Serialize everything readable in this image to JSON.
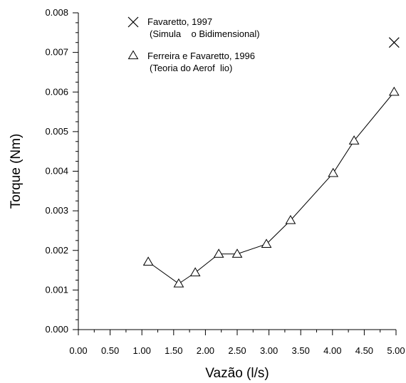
{
  "chart_data": {
    "type": "scatter",
    "xlabel": "Vazão (l/s)",
    "ylabel": "Torque (Nm)",
    "xlim": [
      0.0,
      5.0
    ],
    "ylim": [
      0.0,
      0.008
    ],
    "xticks": [
      "0.00",
      "0.50",
      "1.00",
      "1.50",
      "2.00",
      "2.50",
      "3.00",
      "3.50",
      "4.00",
      "4.50",
      "5.00"
    ],
    "yticks": [
      "0.000",
      "0.001",
      "0.002",
      "0.003",
      "0.004",
      "0.005",
      "0.006",
      "0.007",
      "0.008"
    ],
    "grid": false,
    "legend_position": "top-left",
    "series": [
      {
        "name": "Favaretto, 1997",
        "name_line2": "(Simula    o Bidimensional)",
        "marker": "x",
        "connected": false,
        "x": [
          4.97
        ],
        "y": [
          0.00725
        ]
      },
      {
        "name": "Ferreira e Favaretto, 1996",
        "name_line2": "(Teoria do Aerof  lio)",
        "marker": "triangle",
        "connected": true,
        "x": [
          1.1,
          1.58,
          1.84,
          2.21,
          2.5,
          2.96,
          3.34,
          4.01,
          4.34,
          4.97
        ],
        "y": [
          0.00171,
          0.00116,
          0.00144,
          0.00191,
          0.00191,
          0.00216,
          0.00276,
          0.00395,
          0.00477,
          0.006
        ]
      }
    ]
  }
}
